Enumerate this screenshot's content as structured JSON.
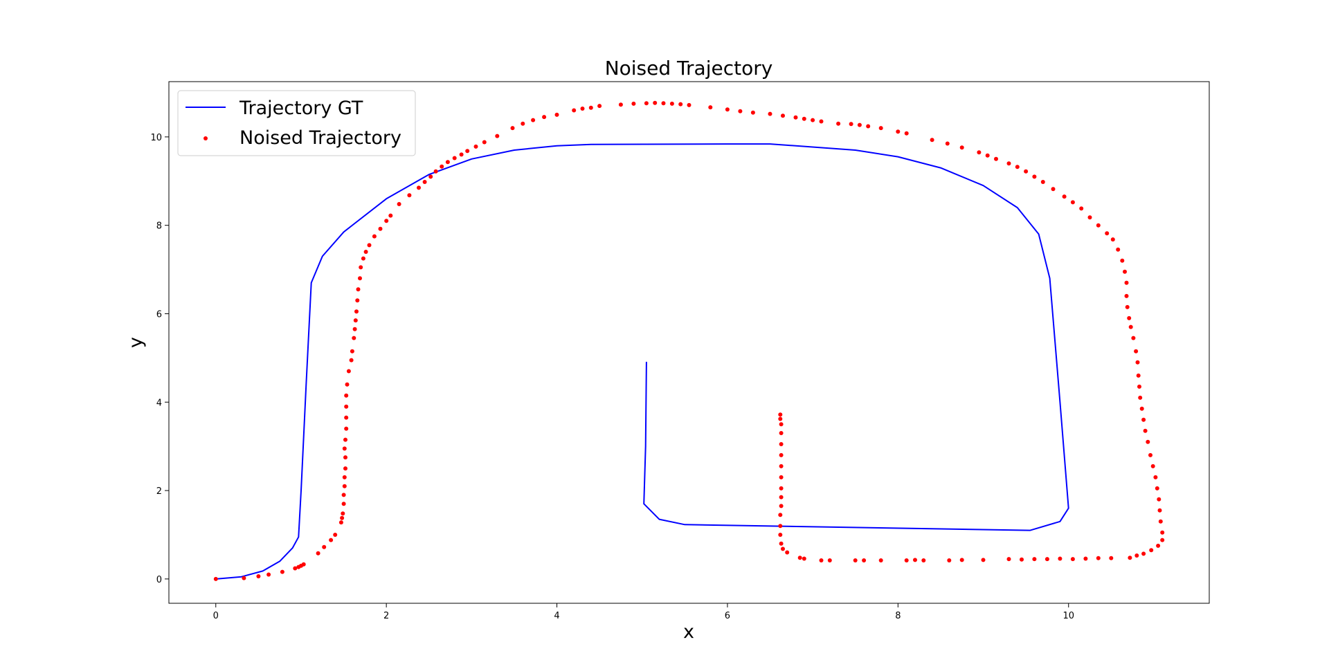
{
  "chart_data": {
    "type": "line",
    "title": "Noised Trajectory",
    "xlabel": "x",
    "ylabel": "y",
    "xlim": [
      -0.55,
      11.65
    ],
    "ylim": [
      -0.55,
      11.25
    ],
    "xticks": [
      0,
      2,
      4,
      6,
      8,
      10
    ],
    "yticks": [
      0,
      2,
      4,
      6,
      8,
      10
    ],
    "grid": false,
    "legend_position": "upper-left",
    "legend_labels": {
      "gt": "Trajectory GT",
      "noised": "Noised Trajectory"
    },
    "colors": {
      "gt": "#0000ff",
      "noised": "#ff0000"
    },
    "series": [
      {
        "name": "Trajectory GT",
        "type": "line",
        "points": [
          [
            0.0,
            0.0
          ],
          [
            0.3,
            0.05
          ],
          [
            0.55,
            0.18
          ],
          [
            0.75,
            0.4
          ],
          [
            0.9,
            0.7
          ],
          [
            0.97,
            0.95
          ],
          [
            1.0,
            2.0
          ],
          [
            1.06,
            4.4
          ],
          [
            1.12,
            6.7
          ],
          [
            1.25,
            7.3
          ],
          [
            1.5,
            7.85
          ],
          [
            2.0,
            8.6
          ],
          [
            2.5,
            9.15
          ],
          [
            3.0,
            9.5
          ],
          [
            3.5,
            9.7
          ],
          [
            4.0,
            9.8
          ],
          [
            4.4,
            9.83
          ],
          [
            6.0,
            9.84
          ],
          [
            6.5,
            9.84
          ],
          [
            7.5,
            9.7
          ],
          [
            8.0,
            9.55
          ],
          [
            8.5,
            9.3
          ],
          [
            9.0,
            8.9
          ],
          [
            9.4,
            8.4
          ],
          [
            9.65,
            7.8
          ],
          [
            9.78,
            6.8
          ],
          [
            9.9,
            4.0
          ],
          [
            10.0,
            1.6
          ],
          [
            9.9,
            1.3
          ],
          [
            9.55,
            1.1
          ],
          [
            5.5,
            1.23
          ],
          [
            5.2,
            1.35
          ],
          [
            5.02,
            1.7
          ],
          [
            5.04,
            3.0
          ],
          [
            5.05,
            4.9
          ]
        ]
      },
      {
        "name": "Noised Trajectory",
        "type": "scatter",
        "points": [
          [
            0.0,
            0.0
          ],
          [
            0.33,
            0.02
          ],
          [
            0.5,
            0.06
          ],
          [
            0.62,
            0.1
          ],
          [
            0.78,
            0.16
          ],
          [
            0.93,
            0.24
          ],
          [
            0.97,
            0.27
          ],
          [
            1.0,
            0.3
          ],
          [
            1.03,
            0.33
          ],
          [
            1.2,
            0.58
          ],
          [
            1.27,
            0.72
          ],
          [
            1.35,
            0.88
          ],
          [
            1.4,
            1.0
          ],
          [
            1.47,
            1.28
          ],
          [
            1.48,
            1.38
          ],
          [
            1.49,
            1.48
          ],
          [
            1.5,
            1.7
          ],
          [
            1.5,
            1.9
          ],
          [
            1.51,
            2.1
          ],
          [
            1.51,
            2.3
          ],
          [
            1.52,
            2.5
          ],
          [
            1.52,
            2.75
          ],
          [
            1.51,
            2.95
          ],
          [
            1.52,
            3.15
          ],
          [
            1.53,
            3.4
          ],
          [
            1.53,
            3.65
          ],
          [
            1.53,
            3.9
          ],
          [
            1.53,
            4.15
          ],
          [
            1.54,
            4.4
          ],
          [
            1.56,
            4.7
          ],
          [
            1.59,
            4.95
          ],
          [
            1.6,
            5.15
          ],
          [
            1.62,
            5.45
          ],
          [
            1.63,
            5.65
          ],
          [
            1.64,
            5.85
          ],
          [
            1.65,
            6.05
          ],
          [
            1.66,
            6.3
          ],
          [
            1.67,
            6.55
          ],
          [
            1.69,
            6.8
          ],
          [
            1.7,
            7.05
          ],
          [
            1.73,
            7.25
          ],
          [
            1.76,
            7.4
          ],
          [
            1.8,
            7.55
          ],
          [
            1.86,
            7.75
          ],
          [
            1.93,
            7.92
          ],
          [
            2.0,
            8.1
          ],
          [
            2.05,
            8.22
          ],
          [
            2.15,
            8.48
          ],
          [
            2.27,
            8.68
          ],
          [
            2.38,
            8.85
          ],
          [
            2.45,
            8.98
          ],
          [
            2.52,
            9.1
          ],
          [
            2.58,
            9.22
          ],
          [
            2.65,
            9.33
          ],
          [
            2.72,
            9.43
          ],
          [
            2.8,
            9.52
          ],
          [
            2.88,
            9.6
          ],
          [
            2.95,
            9.68
          ],
          [
            3.05,
            9.78
          ],
          [
            3.15,
            9.88
          ],
          [
            3.3,
            10.02
          ],
          [
            3.48,
            10.2
          ],
          [
            3.6,
            10.3
          ],
          [
            3.72,
            10.38
          ],
          [
            3.85,
            10.45
          ],
          [
            4.0,
            10.5
          ],
          [
            4.2,
            10.6
          ],
          [
            4.3,
            10.64
          ],
          [
            4.4,
            10.66
          ],
          [
            4.5,
            10.7
          ],
          [
            4.75,
            10.73
          ],
          [
            4.9,
            10.75
          ],
          [
            5.05,
            10.76
          ],
          [
            5.15,
            10.77
          ],
          [
            5.25,
            10.76
          ],
          [
            5.35,
            10.75
          ],
          [
            5.45,
            10.74
          ],
          [
            5.55,
            10.72
          ],
          [
            5.8,
            10.67
          ],
          [
            6.0,
            10.62
          ],
          [
            6.15,
            10.58
          ],
          [
            6.3,
            10.55
          ],
          [
            6.5,
            10.52
          ],
          [
            6.65,
            10.48
          ],
          [
            6.8,
            10.44
          ],
          [
            6.9,
            10.41
          ],
          [
            7.0,
            10.38
          ],
          [
            7.1,
            10.35
          ],
          [
            7.3,
            10.3
          ],
          [
            7.45,
            10.29
          ],
          [
            7.55,
            10.27
          ],
          [
            7.65,
            10.24
          ],
          [
            7.8,
            10.2
          ],
          [
            8.0,
            10.12
          ],
          [
            8.1,
            10.08
          ],
          [
            8.4,
            9.93
          ],
          [
            8.58,
            9.85
          ],
          [
            8.75,
            9.76
          ],
          [
            8.95,
            9.65
          ],
          [
            9.05,
            9.58
          ],
          [
            9.15,
            9.5
          ],
          [
            9.3,
            9.4
          ],
          [
            9.4,
            9.32
          ],
          [
            9.5,
            9.22
          ],
          [
            9.6,
            9.1
          ],
          [
            9.7,
            8.98
          ],
          [
            9.82,
            8.82
          ],
          [
            9.95,
            8.65
          ],
          [
            10.05,
            8.52
          ],
          [
            10.15,
            8.38
          ],
          [
            10.25,
            8.18
          ],
          [
            10.35,
            8.0
          ],
          [
            10.45,
            7.82
          ],
          [
            10.52,
            7.68
          ],
          [
            10.58,
            7.45
          ],
          [
            10.63,
            7.2
          ],
          [
            10.66,
            6.95
          ],
          [
            10.68,
            6.7
          ],
          [
            10.68,
            6.4
          ],
          [
            10.69,
            6.15
          ],
          [
            10.71,
            5.9
          ],
          [
            10.73,
            5.7
          ],
          [
            10.76,
            5.45
          ],
          [
            10.79,
            5.15
          ],
          [
            10.81,
            4.9
          ],
          [
            10.82,
            4.6
          ],
          [
            10.83,
            4.35
          ],
          [
            10.84,
            4.1
          ],
          [
            10.86,
            3.85
          ],
          [
            10.88,
            3.6
          ],
          [
            10.9,
            3.35
          ],
          [
            10.93,
            3.1
          ],
          [
            10.96,
            2.8
          ],
          [
            10.99,
            2.55
          ],
          [
            11.02,
            2.3
          ],
          [
            11.04,
            2.05
          ],
          [
            11.06,
            1.8
          ],
          [
            11.07,
            1.55
          ],
          [
            11.08,
            1.3
          ],
          [
            11.1,
            1.05
          ],
          [
            11.1,
            0.88
          ],
          [
            11.05,
            0.75
          ],
          [
            10.97,
            0.65
          ],
          [
            10.88,
            0.57
          ],
          [
            10.8,
            0.53
          ],
          [
            10.72,
            0.48
          ],
          [
            10.5,
            0.47
          ],
          [
            10.35,
            0.47
          ],
          [
            10.2,
            0.46
          ],
          [
            10.05,
            0.45
          ],
          [
            9.9,
            0.46
          ],
          [
            9.75,
            0.45
          ],
          [
            9.6,
            0.45
          ],
          [
            9.45,
            0.44
          ],
          [
            9.3,
            0.45
          ],
          [
            9.0,
            0.43
          ],
          [
            8.75,
            0.43
          ],
          [
            8.6,
            0.42
          ],
          [
            8.3,
            0.42
          ],
          [
            8.2,
            0.43
          ],
          [
            8.1,
            0.42
          ],
          [
            7.8,
            0.42
          ],
          [
            7.6,
            0.42
          ],
          [
            7.5,
            0.42
          ],
          [
            7.2,
            0.42
          ],
          [
            7.1,
            0.42
          ],
          [
            6.9,
            0.46
          ],
          [
            6.85,
            0.48
          ],
          [
            6.7,
            0.6
          ],
          [
            6.65,
            0.68
          ],
          [
            6.63,
            0.8
          ],
          [
            6.62,
            1.0
          ],
          [
            6.62,
            1.2
          ],
          [
            6.62,
            1.45
          ],
          [
            6.63,
            1.65
          ],
          [
            6.63,
            1.85
          ],
          [
            6.63,
            2.05
          ],
          [
            6.63,
            2.3
          ],
          [
            6.63,
            2.55
          ],
          [
            6.63,
            2.8
          ],
          [
            6.63,
            3.05
          ],
          [
            6.63,
            3.3
          ],
          [
            6.63,
            3.5
          ],
          [
            6.62,
            3.62
          ],
          [
            6.62,
            3.72
          ]
        ]
      }
    ]
  }
}
